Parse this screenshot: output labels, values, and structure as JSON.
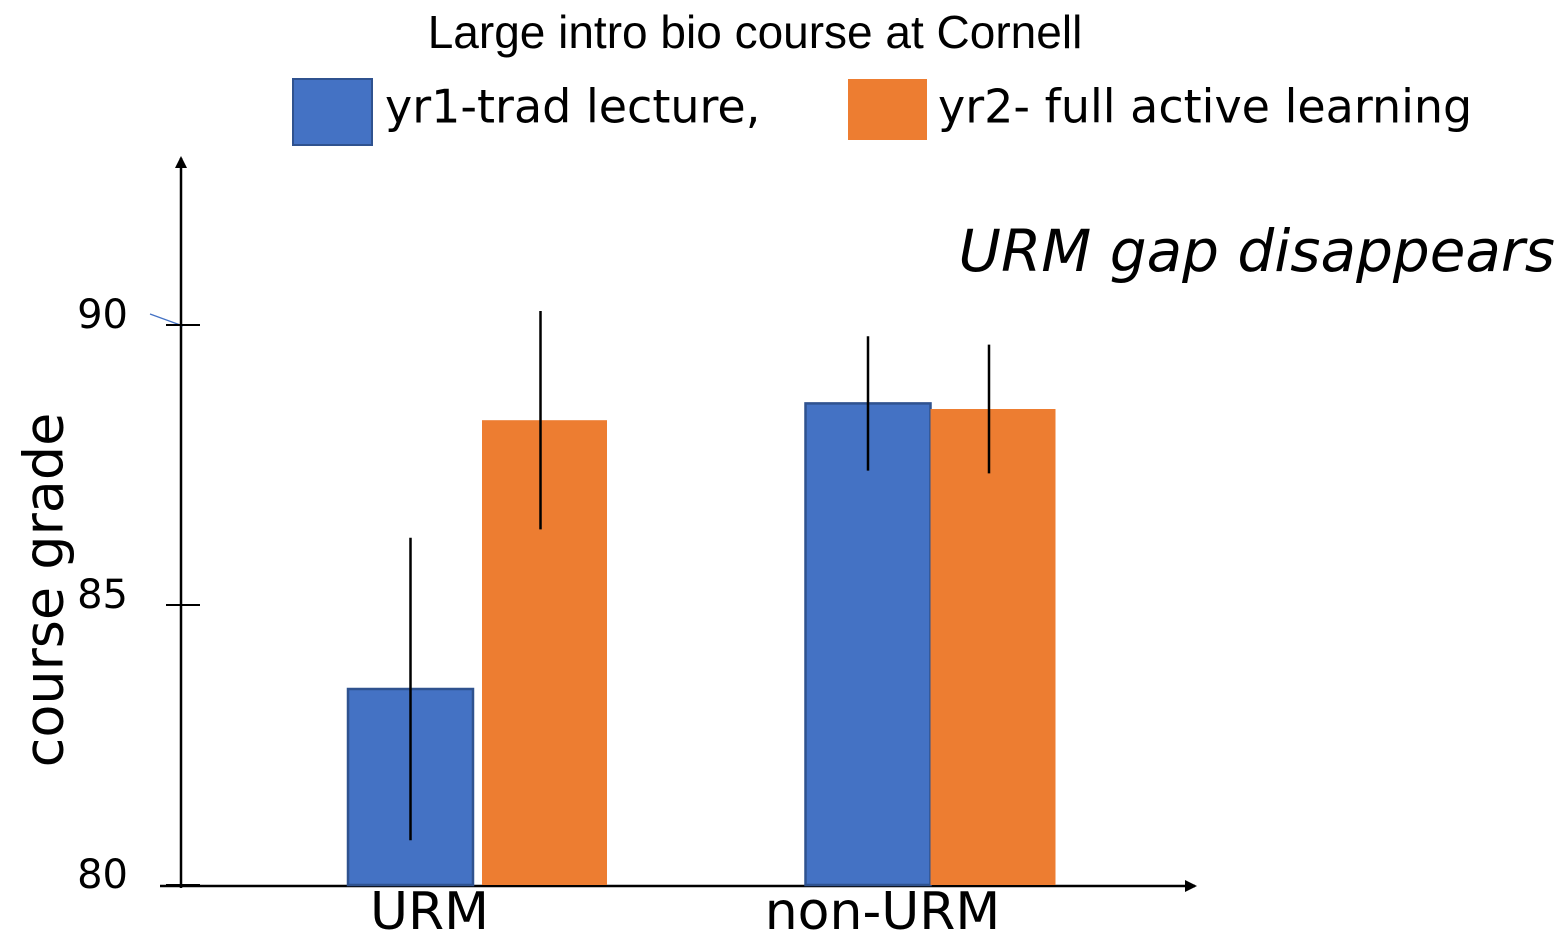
{
  "chart_data": {
    "type": "bar",
    "title": "Large intro bio course at Cornell",
    "y_label": "course grade",
    "annotation": "URM gap disappears",
    "categories": [
      "URM",
      "non-URM"
    ],
    "series": [
      {
        "name": "yr1-trad lecture,",
        "color": "#4472c4",
        "values": [
          83.5,
          88.6
        ],
        "errors": [
          2.7,
          1.2
        ]
      },
      {
        "name": "yr2- full active learning",
        "color": "#ed7d31",
        "values": [
          88.3,
          88.5
        ],
        "errors": [
          1.95,
          1.15
        ]
      }
    ],
    "ylim": [
      80,
      93
    ],
    "yticks": [
      80,
      85,
      90
    ]
  }
}
